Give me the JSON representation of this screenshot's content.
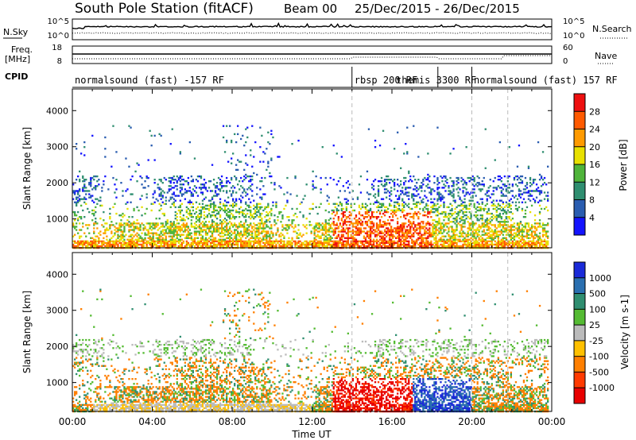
{
  "header": {
    "station": "South Pole Station (fitACF)",
    "beam": "Beam 00",
    "date_range": "25/Dec/2015 - 26/Dec/2015"
  },
  "chart_data": [
    {
      "type": "line",
      "name": "sky-search-panel",
      "left_label": "N.Sky",
      "right_label": "N.Search",
      "left_ticks": [
        "10^5",
        "10^0"
      ],
      "right_ticks": [
        "10^5",
        "10^0"
      ]
    },
    {
      "type": "line",
      "name": "freq-nave-panel",
      "left_label_line1": "Freq.",
      "left_label_line2": "[MHz]",
      "right_label": "Nave",
      "left_ticks": [
        "18",
        "8"
      ],
      "right_ticks": [
        "60",
        "0"
      ]
    },
    {
      "type": "table",
      "name": "cpid-panel",
      "label": "CPID",
      "segments": [
        {
          "label": "normalsound (fast) -157 RF",
          "start_h": 0,
          "end_h": 14
        },
        {
          "label": "rbsp 200 RF",
          "start_h": 14,
          "end_h": 18.3
        },
        {
          "label": "themis 3300 RF",
          "start_h": 18.3,
          "end_h": 20
        },
        {
          "label": "normalsound (fast) 157 RF",
          "start_h": 20,
          "end_h": 24
        }
      ]
    },
    {
      "type": "heatmap",
      "name": "power-panel",
      "ylabel": "Slant Range [km]",
      "yticks": [
        "1000",
        "2000",
        "3000",
        "4000"
      ],
      "ylim": [
        200,
        4600
      ],
      "colorbar_label": "Power [dB]",
      "colorbar_ticks": [
        "4",
        "8",
        "12",
        "16",
        "20",
        "24",
        "28"
      ],
      "colorbar_range": [
        0,
        32
      ],
      "colors": [
        "#1414ff",
        "#2a5db0",
        "#2f8e70",
        "#4fb43a",
        "#e8e000",
        "#ff9a00",
        "#ff5a00",
        "#ee1010"
      ]
    },
    {
      "type": "heatmap",
      "name": "velocity-panel",
      "ylabel": "Slant Range [km]",
      "yticks": [
        "1000",
        "2000",
        "3000",
        "4000"
      ],
      "ylim": [
        200,
        4600
      ],
      "colorbar_label": "Velocity [m s-1]",
      "colorbar_ticks": [
        "1000",
        "500",
        "100",
        "25",
        "-25",
        "-100",
        "-500",
        "-1000"
      ],
      "colors": [
        "#1a2ad8",
        "#2a6fb0",
        "#2f8e70",
        "#55bb33",
        "#bbbbbb",
        "#ffc000",
        "#ff7f00",
        "#ff3a00",
        "#e80000"
      ]
    }
  ],
  "xaxis": {
    "label": "Time UT",
    "ticks": [
      "00:00",
      "04:00",
      "08:00",
      "12:00",
      "16:00",
      "20:00",
      "00:00"
    ],
    "range_h": [
      0,
      24
    ]
  }
}
